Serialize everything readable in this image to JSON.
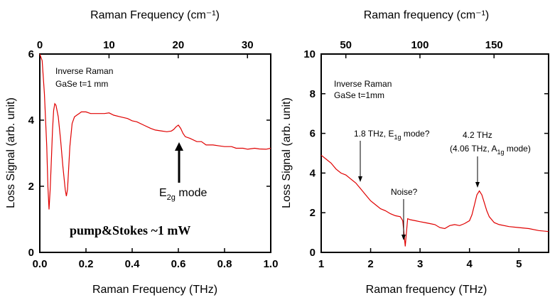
{
  "chart_data": [
    {
      "type": "line",
      "xlabel": "Raman Frequency (THz)",
      "ylabel": "Loss Signal (arb. unit)",
      "top_xlabel": "Raman Frequency (cm⁻¹)",
      "xlim": [
        0.0,
        1.0
      ],
      "ylim": [
        0,
        6
      ],
      "top_xlim": [
        0,
        33.36
      ],
      "x_ticks": [
        "0.0",
        "0.2",
        "0.4",
        "0.6",
        "0.8",
        "1.0"
      ],
      "y_ticks": [
        "0",
        "2",
        "4",
        "6"
      ],
      "top_ticks": [
        "0",
        "10",
        "20",
        "30"
      ],
      "grid": false,
      "color": "#e00000",
      "annotations": {
        "sample1": "Inverse Raman",
        "sample2": "GaSe t=1 mm",
        "mode_pre": "E",
        "mode_sub": "2g",
        "mode_post": " mode",
        "power": "pump&Stokes ~1 mW"
      },
      "series": [
        {
          "x": [
            0.0,
            0.01,
            0.02,
            0.03,
            0.035,
            0.04,
            0.045,
            0.05,
            0.055,
            0.06,
            0.065,
            0.07,
            0.08,
            0.09,
            0.1,
            0.11,
            0.115,
            0.12,
            0.13,
            0.14,
            0.15,
            0.16,
            0.17,
            0.18,
            0.2,
            0.22,
            0.25,
            0.28,
            0.3,
            0.32,
            0.35,
            0.38,
            0.4,
            0.42,
            0.45,
            0.48,
            0.5,
            0.52,
            0.55,
            0.57,
            0.58,
            0.59,
            0.6,
            0.61,
            0.62,
            0.63,
            0.65,
            0.68,
            0.7,
            0.72,
            0.75,
            0.78,
            0.8,
            0.83,
            0.85,
            0.88,
            0.9,
            0.93,
            0.95,
            0.98,
            1.0
          ],
          "y": [
            6.0,
            5.8,
            4.8,
            3.2,
            2.0,
            1.3,
            1.9,
            2.8,
            3.7,
            4.3,
            4.5,
            4.45,
            4.1,
            3.4,
            2.6,
            1.9,
            1.7,
            1.9,
            3.2,
            3.9,
            4.1,
            4.15,
            4.2,
            4.25,
            4.25,
            4.2,
            4.2,
            4.2,
            4.22,
            4.15,
            4.1,
            4.05,
            3.98,
            3.95,
            3.85,
            3.75,
            3.7,
            3.68,
            3.65,
            3.67,
            3.72,
            3.8,
            3.85,
            3.75,
            3.6,
            3.5,
            3.45,
            3.35,
            3.35,
            3.25,
            3.25,
            3.22,
            3.2,
            3.2,
            3.15,
            3.15,
            3.12,
            3.15,
            3.13,
            3.12,
            3.15
          ]
        }
      ]
    },
    {
      "type": "line",
      "xlabel": "Raman frequency (THz)",
      "ylabel": "Loss Signal (arb. unit)",
      "top_xlabel": "Raman frequency (cm⁻¹)",
      "xlim": [
        1.0,
        5.6
      ],
      "ylim": [
        0,
        10
      ],
      "top_xlim": [
        33.36,
        186.8
      ],
      "x_ticks": [
        "1",
        "2",
        "3",
        "4",
        "5"
      ],
      "y_ticks": [
        "0",
        "2",
        "4",
        "6",
        "8",
        "10"
      ],
      "top_ticks": [
        "50",
        "100",
        "150"
      ],
      "grid": false,
      "color": "#e00000",
      "annotations": {
        "sample1": "Inverse Raman",
        "sample2": "GaSe t=1mm",
        "e1_pre": "1.8 THz, E",
        "e1_sub": "1g",
        "e1_post": " mode?",
        "noise": "Noise?",
        "a1_line1": "4.2 THz",
        "a1_pre": "(4.06 THz, A",
        "a1_sub": "1g",
        "a1_post": " mode)"
      },
      "series": [
        {
          "x": [
            1.0,
            1.1,
            1.2,
            1.3,
            1.4,
            1.5,
            1.6,
            1.7,
            1.8,
            1.9,
            2.0,
            2.1,
            2.2,
            2.3,
            2.4,
            2.5,
            2.6,
            2.65,
            2.7,
            2.72,
            2.75,
            2.8,
            2.9,
            3.0,
            3.1,
            3.2,
            3.3,
            3.4,
            3.5,
            3.6,
            3.7,
            3.8,
            3.9,
            4.0,
            4.05,
            4.1,
            4.15,
            4.2,
            4.25,
            4.3,
            4.35,
            4.4,
            4.5,
            4.6,
            4.8,
            5.0,
            5.2,
            5.4,
            5.6
          ],
          "y": [
            4.9,
            4.7,
            4.5,
            4.2,
            4.0,
            3.9,
            3.7,
            3.5,
            3.2,
            2.9,
            2.6,
            2.4,
            2.2,
            2.1,
            1.95,
            1.85,
            1.8,
            1.6,
            0.3,
            0.9,
            1.7,
            1.65,
            1.6,
            1.55,
            1.5,
            1.45,
            1.4,
            1.25,
            1.2,
            1.35,
            1.4,
            1.35,
            1.45,
            1.6,
            1.9,
            2.4,
            2.9,
            3.1,
            2.9,
            2.5,
            2.1,
            1.8,
            1.5,
            1.4,
            1.3,
            1.25,
            1.2,
            1.1,
            1.05
          ]
        }
      ]
    }
  ]
}
